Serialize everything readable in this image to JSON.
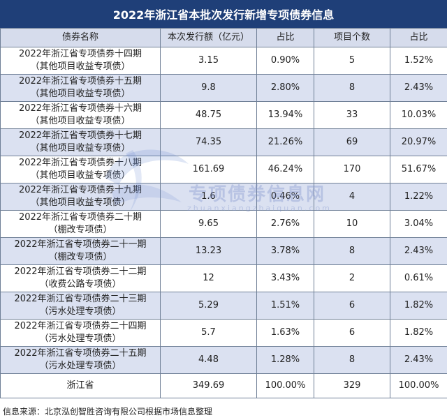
{
  "title": "2022年浙江省本批次发行新增专项债券信息",
  "headers": [
    "债券名称",
    "本次发行额（亿元）",
    "占比",
    "项目个数",
    "占比"
  ],
  "rows": [
    {
      "name1": "2022年浙江省专项债券十四期",
      "name2": "（其他项目收益专项债）",
      "amount": "3.15",
      "amount_pct": "0.90%",
      "count": "5",
      "count_pct": "1.52%"
    },
    {
      "name1": "2022年浙江省专项债券十五期",
      "name2": "（其他项目收益专项债）",
      "amount": "9.8",
      "amount_pct": "2.80%",
      "count": "8",
      "count_pct": "2.43%"
    },
    {
      "name1": "2022年浙江省专项债券十六期",
      "name2": "（其他项目收益专项债）",
      "amount": "48.75",
      "amount_pct": "13.94%",
      "count": "33",
      "count_pct": "10.03%"
    },
    {
      "name1": "2022年浙江省专项债券十七期",
      "name2": "（其他项目收益专项债）",
      "amount": "74.35",
      "amount_pct": "21.26%",
      "count": "69",
      "count_pct": "20.97%"
    },
    {
      "name1": "2022年浙江省专项债券十八期",
      "name2": "（其他项目收益专项债）",
      "amount": "161.69",
      "amount_pct": "46.24%",
      "count": "170",
      "count_pct": "51.67%"
    },
    {
      "name1": "2022年浙江省专项债券十九期",
      "name2": "（其他项目收益专项债）",
      "amount": "1.6",
      "amount_pct": "0.46%",
      "count": "4",
      "count_pct": "1.22%"
    },
    {
      "name1": "2022年浙江省专项债券二十期",
      "name2": "（棚改专项债）",
      "amount": "9.65",
      "amount_pct": "2.76%",
      "count": "10",
      "count_pct": "3.04%"
    },
    {
      "name1": "2022年浙江省专项债券二十一期",
      "name2": "（棚改专项债）",
      "amount": "13.23",
      "amount_pct": "3.78%",
      "count": "8",
      "count_pct": "2.43%"
    },
    {
      "name1": "2022年浙江省专项债券二十二期",
      "name2": "（收费公路专项债）",
      "amount": "12",
      "amount_pct": "3.43%",
      "count": "2",
      "count_pct": "0.61%"
    },
    {
      "name1": "2022年浙江省专项债券二十三期",
      "name2": "（污水处理专项债）",
      "amount": "5.29",
      "amount_pct": "1.51%",
      "count": "6",
      "count_pct": "1.82%"
    },
    {
      "name1": "2022年浙江省专项债券二十四期",
      "name2": "（污水处理专项债）",
      "amount": "5.7",
      "amount_pct": "1.63%",
      "count": "6",
      "count_pct": "1.82%"
    },
    {
      "name1": "2022年浙江省专项债券二十五期",
      "name2": "（污水处理专项债）",
      "amount": "4.48",
      "amount_pct": "1.28%",
      "count": "8",
      "count_pct": "2.43%"
    }
  ],
  "total": {
    "name": "浙江省",
    "amount": "349.69",
    "amount_pct": "100.00%",
    "count": "329",
    "count_pct": "100.00%"
  },
  "source": "信息来源：北京泓创智胜咨询有限公司根据市场信息整理",
  "watermark": {
    "text": "专项债券信息网",
    "sub": "zhuanxiangzhaiquan.com"
  },
  "colors": {
    "title_bg": "#1f3f78",
    "alt_row_bg": "#dbe1f1",
    "border": "#6f7f96"
  }
}
